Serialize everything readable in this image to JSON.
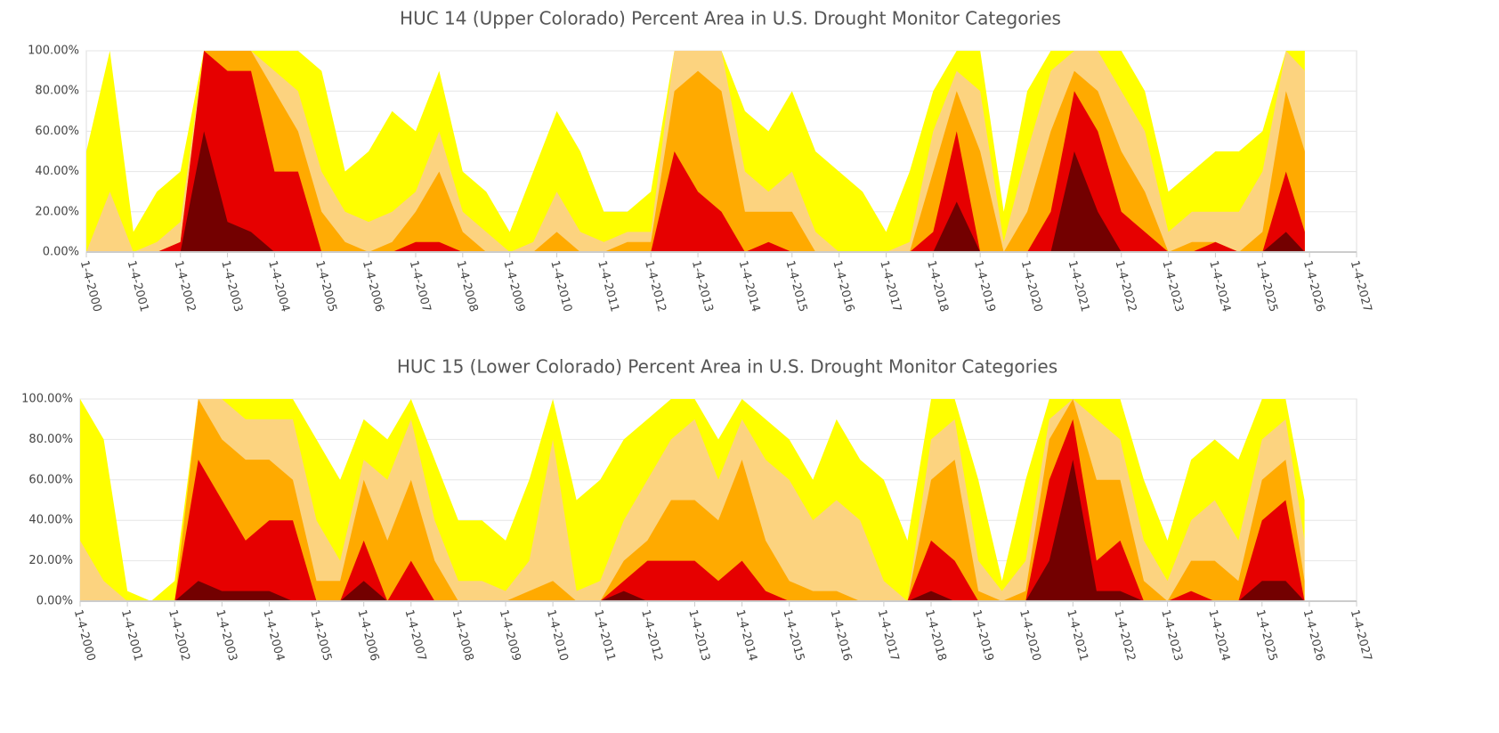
{
  "chart_data": [
    {
      "type": "area",
      "title": "HUC 14 (Upper Colorado) Percent Area in U.S. Drought Monitor Categories",
      "x": [
        2000,
        2000.5,
        2001,
        2001.5,
        2002,
        2002.5,
        2003,
        2003.5,
        2004,
        2004.5,
        2005,
        2005.5,
        2006,
        2006.5,
        2007,
        2007.5,
        2008,
        2008.5,
        2009,
        2009.5,
        2010,
        2010.5,
        2011,
        2011.5,
        2012,
        2012.5,
        2013,
        2013.5,
        2014,
        2014.5,
        2015,
        2015.5,
        2016,
        2016.5,
        2017,
        2017.5,
        2018,
        2018.5,
        2019,
        2019.5,
        2020,
        2020.5,
        2021,
        2021.5,
        2022,
        2022.5,
        2023,
        2023.5,
        2024,
        2024.5,
        2025,
        2025.5,
        2025.9
      ],
      "series": [
        {
          "color": "#ffff00",
          "values": [
            50,
            100,
            10,
            30,
            40,
            100,
            100,
            100,
            100,
            100,
            90,
            40,
            50,
            70,
            60,
            90,
            40,
            30,
            10,
            40,
            70,
            50,
            20,
            20,
            30,
            100,
            100,
            100,
            70,
            60,
            80,
            50,
            40,
            30,
            10,
            40,
            80,
            100,
            100,
            20,
            80,
            100,
            100,
            100,
            100,
            80,
            30,
            40,
            50,
            50,
            60,
            100,
            100
          ]
        },
        {
          "color": "#fcd37f",
          "values": [
            0,
            30,
            0,
            5,
            15,
            100,
            100,
            100,
            90,
            80,
            40,
            20,
            15,
            20,
            30,
            60,
            20,
            10,
            0,
            5,
            30,
            10,
            5,
            10,
            10,
            100,
            100,
            100,
            40,
            30,
            40,
            10,
            0,
            0,
            0,
            5,
            60,
            90,
            80,
            5,
            50,
            90,
            100,
            100,
            80,
            60,
            10,
            20,
            20,
            20,
            40,
            100,
            90
          ]
        },
        {
          "color": "#ffaa00",
          "values": [
            0,
            0,
            0,
            0,
            5,
            100,
            100,
            100,
            80,
            60,
            20,
            5,
            0,
            5,
            20,
            40,
            10,
            0,
            0,
            0,
            10,
            0,
            0,
            5,
            5,
            80,
            90,
            80,
            20,
            20,
            20,
            0,
            0,
            0,
            0,
            0,
            40,
            80,
            50,
            0,
            20,
            60,
            90,
            80,
            50,
            30,
            0,
            5,
            5,
            0,
            10,
            80,
            50
          ]
        },
        {
          "color": "#e60000",
          "values": [
            0,
            0,
            0,
            0,
            5,
            100,
            90,
            90,
            40,
            40,
            0,
            0,
            0,
            0,
            5,
            5,
            0,
            0,
            0,
            0,
            0,
            0,
            0,
            0,
            0,
            50,
            30,
            20,
            0,
            5,
            0,
            0,
            0,
            0,
            0,
            0,
            10,
            60,
            0,
            0,
            0,
            20,
            80,
            60,
            20,
            10,
            0,
            0,
            5,
            0,
            0,
            40,
            10
          ]
        },
        {
          "color": "#730000",
          "values": [
            0,
            0,
            0,
            0,
            0,
            60,
            15,
            10,
            0,
            0,
            0,
            0,
            0,
            0,
            0,
            0,
            0,
            0,
            0,
            0,
            0,
            0,
            0,
            0,
            0,
            0,
            0,
            0,
            0,
            0,
            0,
            0,
            0,
            0,
            0,
            0,
            0,
            25,
            0,
            0,
            0,
            0,
            50,
            20,
            0,
            0,
            0,
            0,
            0,
            0,
            0,
            10,
            0
          ]
        }
      ],
      "xlim": [
        2000,
        2027
      ],
      "xticks": [
        {
          "value": 2000,
          "label": "1-4-2000"
        },
        {
          "value": 2001,
          "label": "1-4-2001"
        },
        {
          "value": 2002,
          "label": "1-4-2002"
        },
        {
          "value": 2003,
          "label": "1-4-2003"
        },
        {
          "value": 2004,
          "label": "1-4-2004"
        },
        {
          "value": 2005,
          "label": "1-4-2005"
        },
        {
          "value": 2006,
          "label": "1-4-2006"
        },
        {
          "value": 2007,
          "label": "1-4-2007"
        },
        {
          "value": 2008,
          "label": "1-4-2008"
        },
        {
          "value": 2009,
          "label": "1-4-2009"
        },
        {
          "value": 2010,
          "label": "1-4-2010"
        },
        {
          "value": 2011,
          "label": "1-4-2011"
        },
        {
          "value": 2012,
          "label": "1-4-2012"
        },
        {
          "value": 2013,
          "label": "1-4-2013"
        },
        {
          "value": 2014,
          "label": "1-4-2014"
        },
        {
          "value": 2015,
          "label": "1-4-2015"
        },
        {
          "value": 2016,
          "label": "1-4-2016"
        },
        {
          "value": 2017,
          "label": "1-4-2017"
        },
        {
          "value": 2018,
          "label": "1-4-2018"
        },
        {
          "value": 2019,
          "label": "1-4-2019"
        },
        {
          "value": 2020,
          "label": "1-4-2020"
        },
        {
          "value": 2021,
          "label": "1-4-2021"
        },
        {
          "value": 2022,
          "label": "1-4-2022"
        },
        {
          "value": 2023,
          "label": "1-4-2023"
        },
        {
          "value": 2024,
          "label": "1-4-2024"
        },
        {
          "value": 2025,
          "label": "1-4-2025"
        },
        {
          "value": 2026,
          "label": "1-4-2026"
        },
        {
          "value": 2027,
          "label": "1-4-2027"
        }
      ],
      "ylim": [
        0,
        100
      ],
      "yticks": [
        {
          "value": 0,
          "label": "0.00%"
        },
        {
          "value": 20,
          "label": "20.00%"
        },
        {
          "value": 40,
          "label": "40.00%"
        },
        {
          "value": 60,
          "label": "60.00%"
        },
        {
          "value": 80,
          "label": "80.00%"
        },
        {
          "value": 100,
          "label": "100.00%"
        }
      ],
      "grid": true
    },
    {
      "type": "area",
      "title": "HUC 15 (Lower Colorado) Percent Area in U.S. Drought Monitor Categories",
      "x": [
        2000,
        2000.5,
        2001,
        2001.5,
        2002,
        2002.5,
        2003,
        2003.5,
        2004,
        2004.5,
        2005,
        2005.5,
        2006,
        2006.5,
        2007,
        2007.5,
        2008,
        2008.5,
        2009,
        2009.5,
        2010,
        2010.5,
        2011,
        2011.5,
        2012,
        2012.5,
        2013,
        2013.5,
        2014,
        2014.5,
        2015,
        2015.5,
        2016,
        2016.5,
        2017,
        2017.5,
        2018,
        2018.5,
        2019,
        2019.5,
        2020,
        2020.5,
        2021,
        2021.5,
        2022,
        2022.5,
        2023,
        2023.5,
        2024,
        2024.5,
        2025,
        2025.5,
        2025.9
      ],
      "series": [
        {
          "color": "#ffff00",
          "values": [
            100,
            80,
            5,
            0,
            10,
            100,
            100,
            100,
            100,
            100,
            80,
            60,
            90,
            80,
            100,
            70,
            40,
            40,
            30,
            60,
            100,
            50,
            60,
            80,
            90,
            100,
            100,
            80,
            100,
            90,
            80,
            60,
            90,
            70,
            60,
            30,
            100,
            100,
            60,
            10,
            60,
            100,
            100,
            100,
            100,
            60,
            30,
            70,
            80,
            70,
            100,
            100,
            50
          ]
        },
        {
          "color": "#fcd37f",
          "values": [
            30,
            10,
            0,
            0,
            0,
            100,
            100,
            90,
            90,
            90,
            40,
            20,
            70,
            60,
            90,
            40,
            10,
            10,
            5,
            20,
            80,
            5,
            10,
            40,
            60,
            80,
            90,
            60,
            90,
            70,
            60,
            40,
            50,
            40,
            10,
            0,
            80,
            90,
            20,
            5,
            20,
            90,
            100,
            90,
            80,
            30,
            10,
            40,
            50,
            30,
            80,
            90,
            30
          ]
        },
        {
          "color": "#ffaa00",
          "values": [
            0,
            0,
            0,
            0,
            0,
            100,
            80,
            70,
            70,
            60,
            10,
            10,
            60,
            30,
            60,
            20,
            0,
            0,
            0,
            5,
            10,
            0,
            0,
            20,
            30,
            50,
            50,
            40,
            70,
            30,
            10,
            5,
            5,
            0,
            0,
            0,
            60,
            70,
            5,
            0,
            5,
            80,
            100,
            60,
            60,
            10,
            0,
            20,
            20,
            10,
            60,
            70,
            10
          ]
        },
        {
          "color": "#e60000",
          "values": [
            0,
            0,
            0,
            0,
            0,
            70,
            50,
            30,
            40,
            40,
            0,
            0,
            30,
            0,
            20,
            0,
            0,
            0,
            0,
            0,
            0,
            0,
            0,
            10,
            20,
            20,
            20,
            10,
            20,
            5,
            0,
            0,
            0,
            0,
            0,
            0,
            30,
            20,
            0,
            0,
            0,
            60,
            90,
            20,
            30,
            0,
            0,
            5,
            0,
            0,
            40,
            50,
            0
          ]
        },
        {
          "color": "#730000",
          "values": [
            0,
            0,
            0,
            0,
            0,
            10,
            5,
            5,
            5,
            0,
            0,
            0,
            10,
            0,
            0,
            0,
            0,
            0,
            0,
            0,
            0,
            0,
            0,
            5,
            0,
            0,
            0,
            0,
            0,
            0,
            0,
            0,
            0,
            0,
            0,
            0,
            5,
            0,
            0,
            0,
            0,
            20,
            70,
            5,
            5,
            0,
            0,
            0,
            0,
            0,
            10,
            10,
            0
          ]
        }
      ],
      "xlim": [
        2000,
        2027
      ],
      "xticks": [
        {
          "value": 2000,
          "label": "1-4-2000"
        },
        {
          "value": 2001,
          "label": "1-4-2001"
        },
        {
          "value": 2002,
          "label": "1-4-2002"
        },
        {
          "value": 2003,
          "label": "1-4-2003"
        },
        {
          "value": 2004,
          "label": "1-4-2004"
        },
        {
          "value": 2005,
          "label": "1-4-2005"
        },
        {
          "value": 2006,
          "label": "1-4-2006"
        },
        {
          "value": 2007,
          "label": "1-4-2007"
        },
        {
          "value": 2008,
          "label": "1-4-2008"
        },
        {
          "value": 2009,
          "label": "1-4-2009"
        },
        {
          "value": 2010,
          "label": "1-4-2010"
        },
        {
          "value": 2011,
          "label": "1-4-2011"
        },
        {
          "value": 2012,
          "label": "1-4-2012"
        },
        {
          "value": 2013,
          "label": "1-4-2013"
        },
        {
          "value": 2014,
          "label": "1-4-2014"
        },
        {
          "value": 2015,
          "label": "1-4-2015"
        },
        {
          "value": 2016,
          "label": "1-4-2016"
        },
        {
          "value": 2017,
          "label": "1-4-2017"
        },
        {
          "value": 2018,
          "label": "1-4-2018"
        },
        {
          "value": 2019,
          "label": "1-4-2019"
        },
        {
          "value": 2020,
          "label": "1-4-2020"
        },
        {
          "value": 2021,
          "label": "1-4-2021"
        },
        {
          "value": 2022,
          "label": "1-4-2022"
        },
        {
          "value": 2023,
          "label": "1-4-2023"
        },
        {
          "value": 2024,
          "label": "1-4-2024"
        },
        {
          "value": 2025,
          "label": "1-4-2025"
        },
        {
          "value": 2026,
          "label": "1-4-2026"
        },
        {
          "value": 2027,
          "label": "1-4-2027"
        }
      ],
      "ylim": [
        0,
        100
      ],
      "yticks": [
        {
          "value": 0,
          "label": "0.00%"
        },
        {
          "value": 20,
          "label": "20.00%"
        },
        {
          "value": 40,
          "label": "40.00%"
        },
        {
          "value": 60,
          "label": "60.00%"
        },
        {
          "value": 80,
          "label": "80.00%"
        },
        {
          "value": 100,
          "label": "100.00%"
        }
      ],
      "grid": true
    }
  ]
}
